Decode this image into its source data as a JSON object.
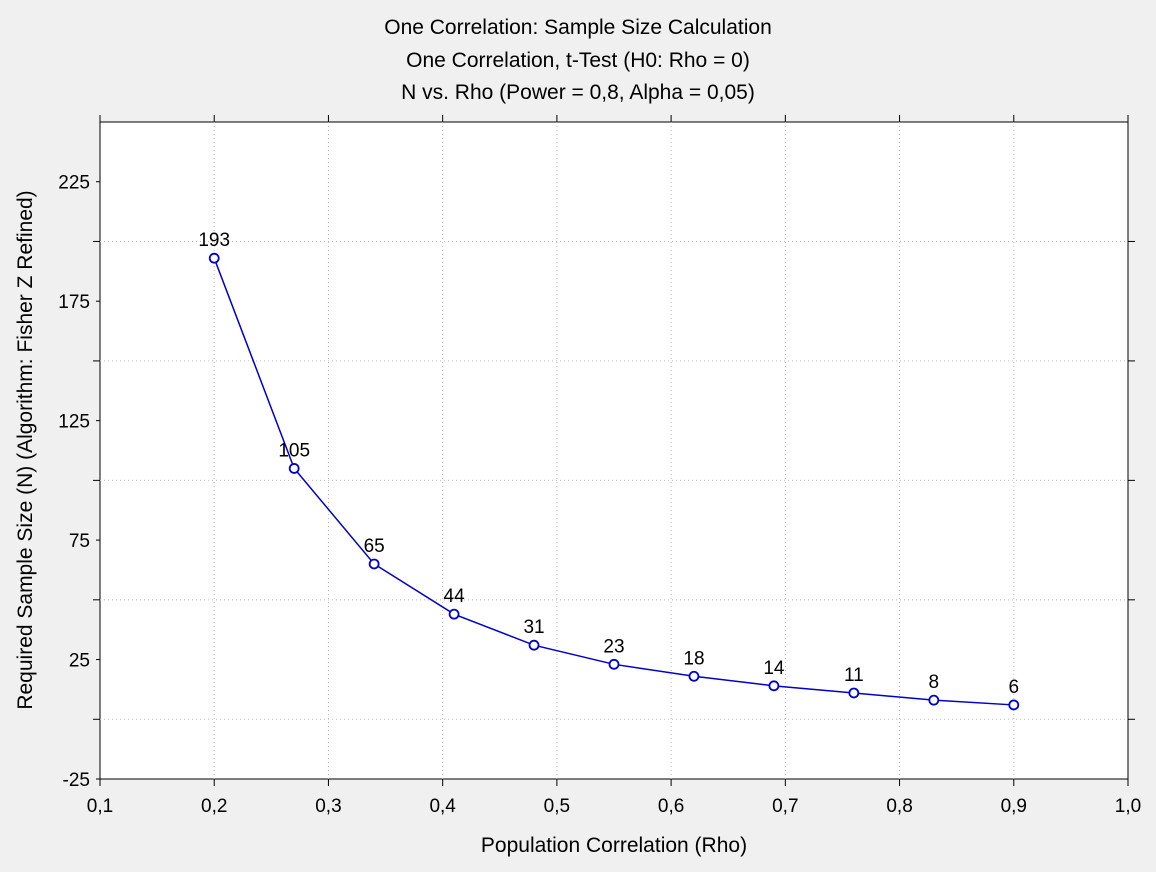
{
  "chart_data": {
    "type": "line",
    "title": "One Correlation: Sample Size Calculation",
    "subtitle": "One Correlation, t-Test (H0:  Rho =  0)",
    "subtitle2": "N vs. Rho (Power = 0,8, Alpha = 0,05)",
    "xlabel": "Population Correlation (Rho)",
    "ylabel": "Required Sample Size (N) (Algorithm: Fisher Z Refined)",
    "xlim": [
      0.1,
      1.0
    ],
    "ylim": [
      -25,
      250
    ],
    "x_ticks": [
      0.1,
      0.2,
      0.3,
      0.4,
      0.5,
      0.6,
      0.7,
      0.8,
      0.9,
      1.0
    ],
    "x_tick_labels": [
      "0,1",
      "0,2",
      "0,3",
      "0,4",
      "0,5",
      "0,6",
      "0,7",
      "0,8",
      "0,9",
      "1,0"
    ],
    "y_ticks": [
      -25,
      25,
      75,
      125,
      175,
      225
    ],
    "y_tick_labels": [
      "-25",
      "25",
      "75",
      "125",
      "175",
      "225"
    ],
    "y_grid_ticks": [
      0,
      50,
      100,
      150,
      200
    ],
    "grid": true,
    "series": [
      {
        "x": [
          0.2,
          0.27,
          0.34,
          0.41,
          0.48,
          0.55,
          0.62,
          0.69,
          0.76,
          0.83,
          0.9
        ],
        "y": [
          193,
          105,
          65,
          44,
          31,
          23,
          18,
          14,
          11,
          8,
          6
        ],
        "data_labels": [
          "193",
          "105",
          "65",
          "44",
          "31",
          "23",
          "18",
          "14",
          "11",
          "8",
          "6"
        ],
        "color": "#0000cc"
      }
    ]
  }
}
